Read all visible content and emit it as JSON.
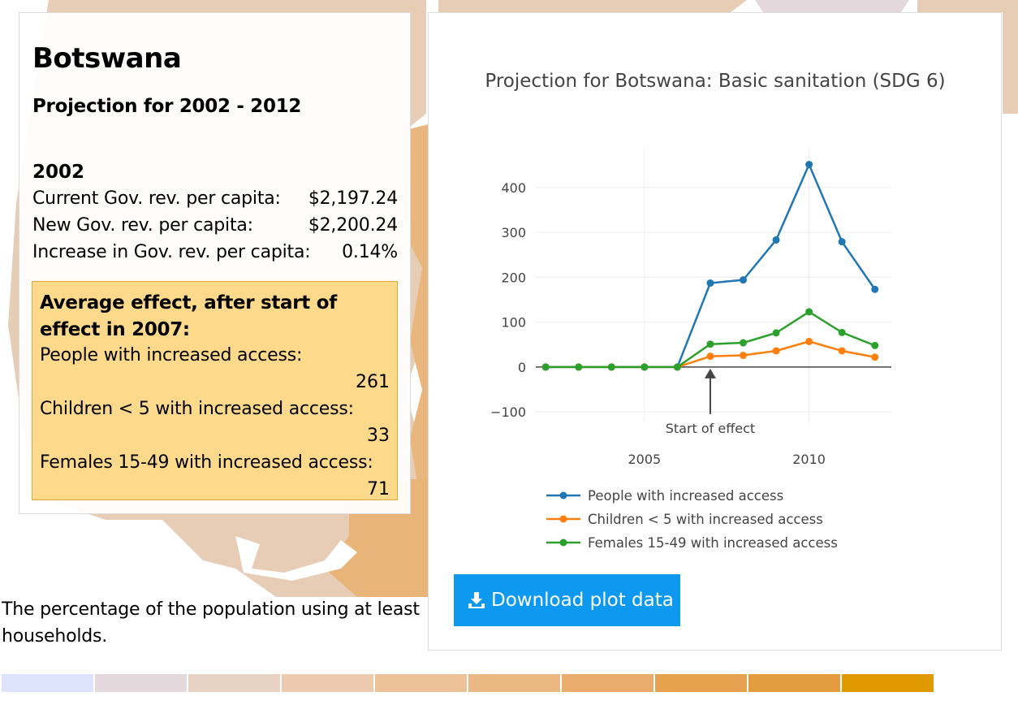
{
  "info": {
    "country": "Botswana",
    "projection_period": "Projection for 2002 - 2012",
    "year": "2002",
    "stats": [
      {
        "label": "Current Gov. rev. per capita:",
        "value": "$2,197.24"
      },
      {
        "label": "New Gov. rev. per capita:",
        "value": "$2,200.24"
      },
      {
        "label": "Increase in Gov. rev. per capita:",
        "value": "0.14%"
      }
    ],
    "effect": {
      "heading": "Average effect, after start of effect in 2007:",
      "items": [
        {
          "label": "People with increased access:",
          "value": "261"
        },
        {
          "label": "Children < 5 with increased access:",
          "value": "33"
        },
        {
          "label": "Females 15-49 with increased access:",
          "value": "71"
        }
      ]
    }
  },
  "description": {
    "line1": "The percentage of the population using at least",
    "line2": "households."
  },
  "download_label": "Download plot data",
  "colors": {
    "people": "#1f77b4",
    "children": "#ff7f0e",
    "females": "#2ca02c",
    "button": "#0d99f0",
    "effect_box": "#fdd98c",
    "scale": [
      "#dde3fa",
      "#e3d9dd",
      "#e8d2c4",
      "#eccaad",
      "#ecc197",
      "#ebb783",
      "#e9ac6c",
      "#e6a24f",
      "#e39d3f",
      "#e09a00"
    ]
  },
  "chart_data": {
    "type": "line",
    "title": "Projection for Botswana: Basic sanitation (SDG 6)",
    "xlabel": "",
    "ylabel": "",
    "xlim": [
      2001.7,
      2012.5
    ],
    "ylim": [
      -125,
      490
    ],
    "x_ticks": [
      2005,
      2010
    ],
    "y_ticks": [
      -100,
      0,
      100,
      200,
      300,
      400
    ],
    "x": [
      2002,
      2003,
      2004,
      2005,
      2006,
      2007,
      2008,
      2009,
      2010,
      2011,
      2012
    ],
    "series": [
      {
        "name": "People with increased access",
        "color": "#1f77b4",
        "values": [
          0,
          0,
          0,
          0,
          0,
          187,
          194,
          283,
          451,
          279,
          173
        ]
      },
      {
        "name": "Children < 5 with increased access",
        "color": "#ff7f0e",
        "values": [
          0,
          0,
          0,
          0,
          0,
          24,
          26,
          36,
          57,
          36,
          22
        ]
      },
      {
        "name": "Females 15-49 with increased access",
        "color": "#2ca02c",
        "values": [
          0,
          0,
          0,
          0,
          0,
          51,
          54,
          76,
          123,
          77,
          48
        ]
      }
    ],
    "annotation": {
      "text": "Start of effect",
      "x": 2007,
      "y": 0
    },
    "legend_position": "bottom-left"
  }
}
